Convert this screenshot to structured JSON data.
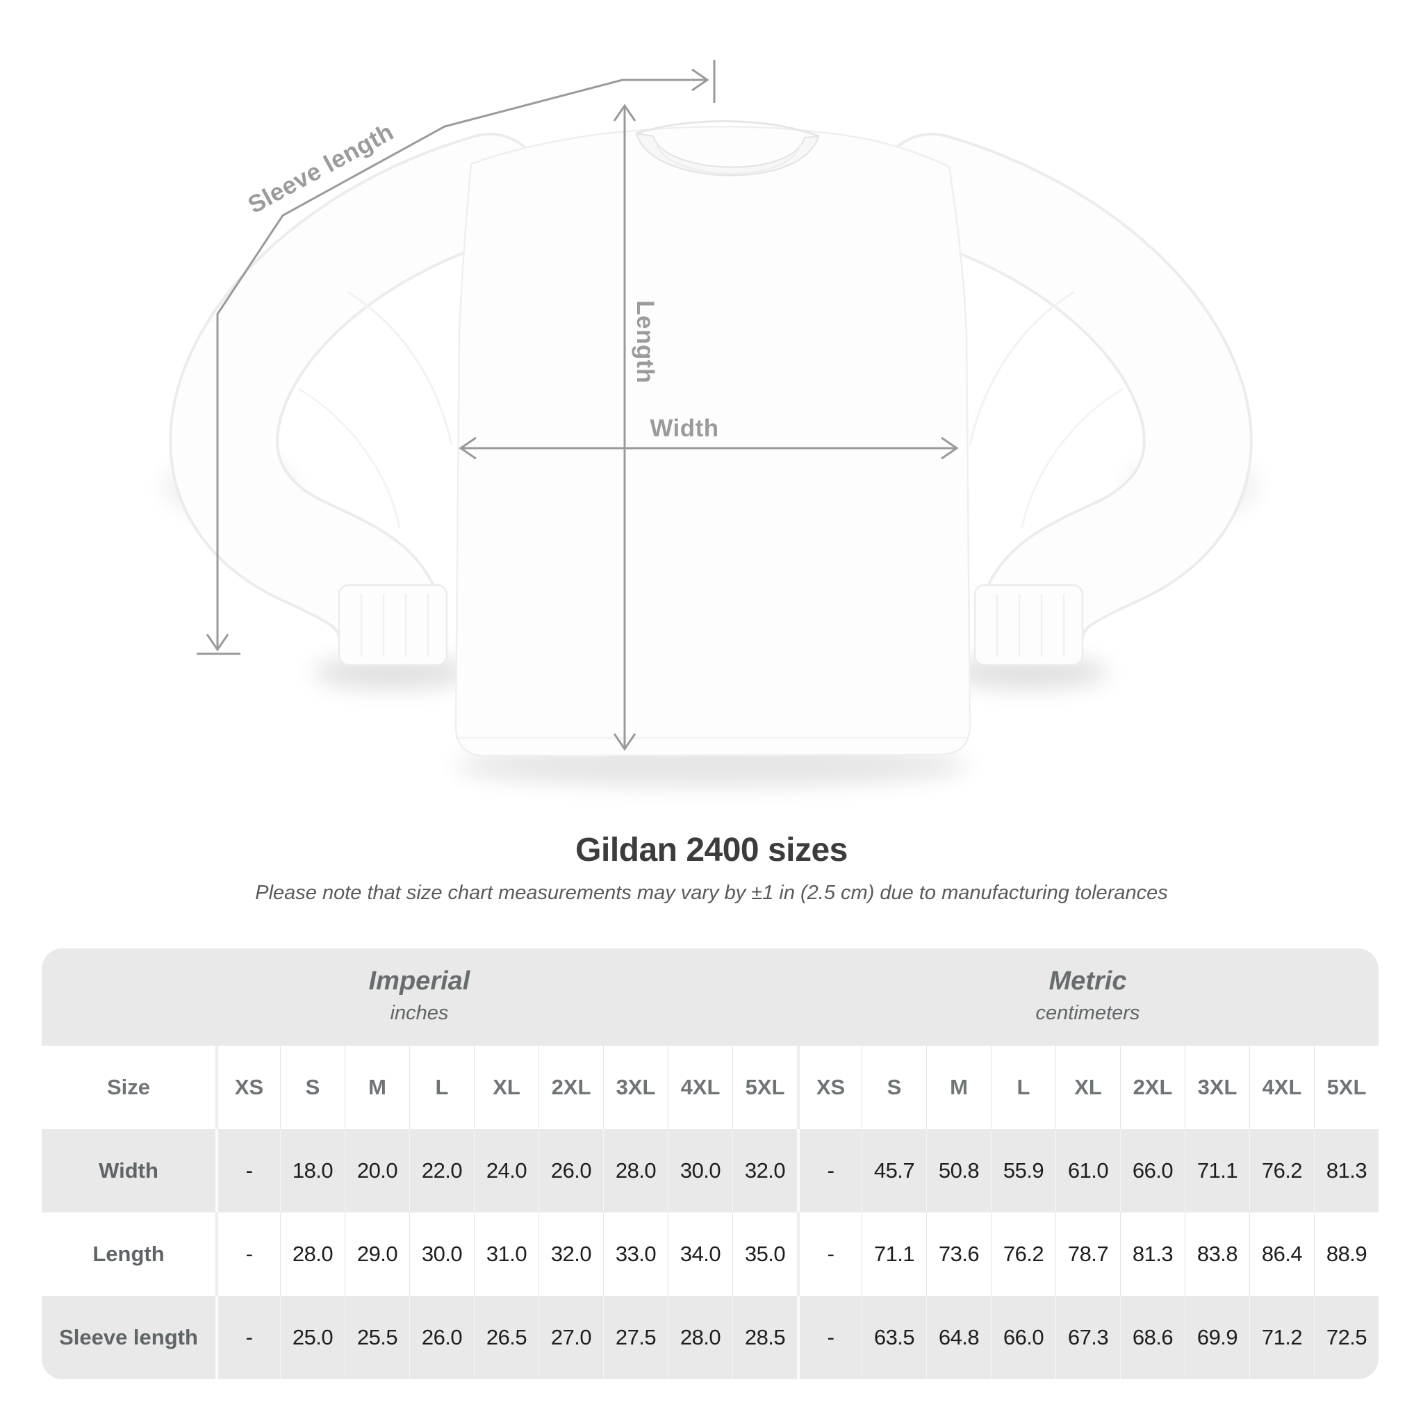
{
  "subtitle": "Please note that size chart measurements may vary by ±1 in (2.5 cm) due to manufacturing tolerances",
  "diagram": {
    "labels": {
      "sleeve_length": "Sleeve length",
      "length": "Length",
      "width": "Width"
    }
  },
  "chart_data": {
    "type": "table",
    "title": "Gildan 2400 sizes",
    "corner_header": "Size",
    "groups": [
      {
        "name": "Imperial",
        "unit": "inches"
      },
      {
        "name": "Metric",
        "unit": "centimeters"
      }
    ],
    "columns": [
      "XS",
      "S",
      "M",
      "L",
      "XL",
      "2XL",
      "3XL",
      "4XL",
      "5XL",
      "XS",
      "S",
      "M",
      "L",
      "XL",
      "2XL",
      "3XL",
      "4XL",
      "5XL"
    ],
    "rows": [
      {
        "label": "Width",
        "values": [
          "-",
          "18.0",
          "20.0",
          "22.0",
          "24.0",
          "26.0",
          "28.0",
          "30.0",
          "32.0",
          "-",
          "45.7",
          "50.8",
          "55.9",
          "61.0",
          "66.0",
          "71.1",
          "76.2",
          "81.3"
        ]
      },
      {
        "label": "Length",
        "values": [
          "-",
          "28.0",
          "29.0",
          "30.0",
          "31.0",
          "32.0",
          "33.0",
          "34.0",
          "35.0",
          "-",
          "71.1",
          "73.6",
          "76.2",
          "78.7",
          "81.3",
          "83.8",
          "86.4",
          "88.9"
        ]
      },
      {
        "label": "Sleeve length",
        "values": [
          "-",
          "25.0",
          "25.5",
          "26.0",
          "26.5",
          "27.0",
          "27.5",
          "28.0",
          "28.5",
          "-",
          "63.5",
          "64.8",
          "66.0",
          "67.3",
          "68.6",
          "69.9",
          "71.2",
          "72.5"
        ]
      }
    ]
  },
  "colors": {
    "measure_line": "#9a9a9a",
    "measure_label": "#9b9b9b",
    "title_text": "#3c3c3c",
    "subtitle_text": "#5a5a5a",
    "table_band": "#e9e9e9",
    "table_alt_row": "#e9e9e9",
    "header_text": "#6f7476",
    "value_text": "#1e1e1e",
    "shirt_fill": "#fdfdfd"
  }
}
